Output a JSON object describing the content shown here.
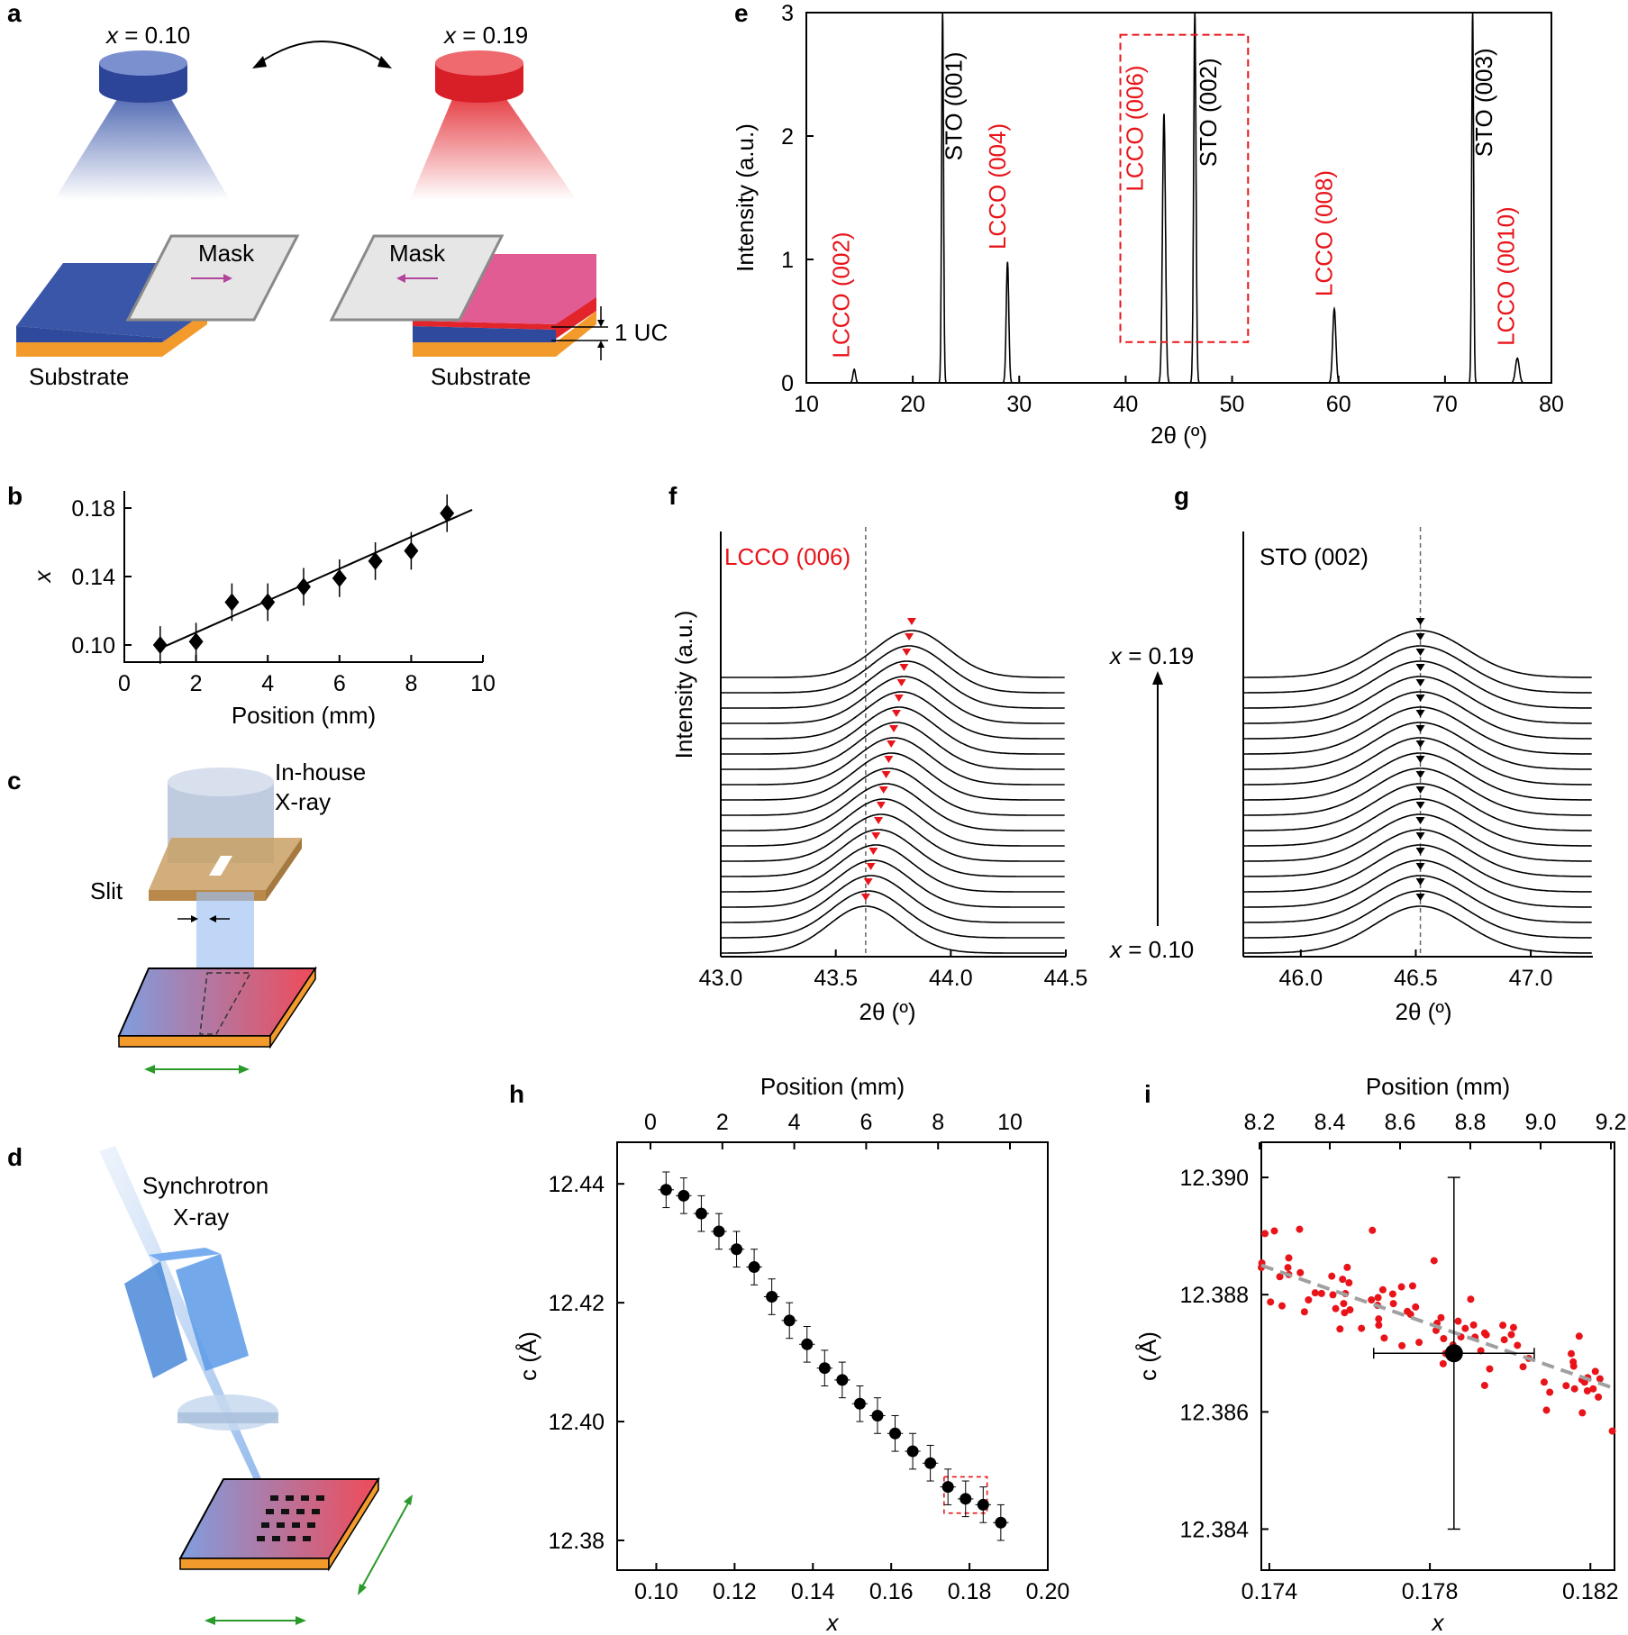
{
  "panels": {
    "a": "a",
    "b": "b",
    "c": "c",
    "d": "d",
    "e": "e",
    "f": "f",
    "g": "g",
    "h": "h",
    "i": "i"
  },
  "panel_a": {
    "x_left_pre": "x",
    "x_left_val": " = 0.10",
    "x_right_pre": "x",
    "x_right_val": " = 0.19",
    "mask_left": "Mask",
    "mask_right": "Mask",
    "substrate_left": "Substrate",
    "substrate_right": "Substrate",
    "uc_label": "1 UC",
    "colors": {
      "blue": "#2f4a9c",
      "red": "#e2242b",
      "pink": "#e25c94",
      "substrate": "#f39a2c"
    }
  },
  "panel_c": {
    "source": "In-house",
    "source2": "X-ray",
    "slit": "Slit"
  },
  "panel_d": {
    "source": "Synchrotron",
    "source2": "X-ray"
  },
  "panel_f": {
    "peak_label": "LCCO (006)",
    "ylabel": "Intensity (a.u.)",
    "xlabel": "2θ (º)"
  },
  "panel_g": {
    "peak_label": "STO (002)",
    "xlabel": "2θ (º)"
  },
  "arrow_labels": {
    "top_pre": "x",
    "top_val": " = 0.19",
    "bottom_pre": "x",
    "bottom_val": " = 0.10"
  },
  "chart_data": [
    {
      "id": "b",
      "type": "scatter",
      "xlabel": "Position (mm)",
      "ylabel": "x",
      "xlim": [
        0,
        10
      ],
      "ylim": [
        0.09,
        0.19
      ],
      "xticks": [
        "0",
        "2",
        "4",
        "6",
        "8",
        "10"
      ],
      "yticks": [
        "0.10",
        "0.14",
        "0.18"
      ],
      "x": [
        1,
        2,
        3,
        4,
        5,
        6,
        7,
        8,
        9
      ],
      "y": [
        0.1,
        0.102,
        0.125,
        0.125,
        0.134,
        0.139,
        0.149,
        0.155,
        0.177
      ],
      "yerr": 0.011,
      "fit": {
        "x0": 1,
        "y0": 0.098,
        "x1": 9.7,
        "y1": 0.179
      }
    },
    {
      "id": "e",
      "type": "line",
      "xlabel": "2θ (º)",
      "ylabel": "Intensity (a.u.)",
      "xlim": [
        10,
        80
      ],
      "ylim": [
        0,
        3
      ],
      "xticks": [
        "10",
        "20",
        "30",
        "40",
        "50",
        "60",
        "70",
        "80"
      ],
      "yticks": [
        "0",
        "1",
        "2",
        "3"
      ],
      "peaks": [
        {
          "x": 14.5,
          "h": 0.11,
          "w": 0.12
        },
        {
          "x": 22.8,
          "h": 3.0,
          "w": 0.09
        },
        {
          "x": 28.9,
          "h": 0.98,
          "w": 0.12
        },
        {
          "x": 43.6,
          "h": 2.18,
          "w": 0.14
        },
        {
          "x": 46.5,
          "h": 3.0,
          "w": 0.11
        },
        {
          "x": 59.6,
          "h": 0.6,
          "w": 0.15
        },
        {
          "x": 72.6,
          "h": 3.0,
          "w": 0.09
        },
        {
          "x": 76.8,
          "h": 0.2,
          "w": 0.18
        }
      ],
      "labels": [
        {
          "text": "LCCO (002)",
          "x": 14.0,
          "y": 0.2,
          "color": "red"
        },
        {
          "text": "STO (001)",
          "x": 24.6,
          "y": 1.8,
          "color": "black"
        },
        {
          "text": "LCCO (004)",
          "x": 28.7,
          "y": 1.08,
          "color": "red"
        },
        {
          "text": "LCCO (006)",
          "x": 41.6,
          "y": 1.55,
          "color": "red"
        },
        {
          "text": "STO (002)",
          "x": 48.5,
          "y": 1.75,
          "color": "black"
        },
        {
          "text": "LCCO (008)",
          "x": 59.4,
          "y": 0.7,
          "color": "red"
        },
        {
          "text": "STO (003)",
          "x": 74.4,
          "y": 1.83,
          "color": "black"
        },
        {
          "text": "LCCO (0010)",
          "x": 76.5,
          "y": 0.3,
          "color": "red"
        }
      ],
      "box": {
        "x0": 39.5,
        "x1": 51.5,
        "y0": 0.33,
        "y1": 2.82
      }
    },
    {
      "id": "f",
      "type": "line",
      "xlim": [
        43.0,
        44.5
      ],
      "xticks": [
        "43.0",
        "43.5",
        "44.0",
        "44.5"
      ],
      "n_curves": 19,
      "peak_start": 43.63,
      "peak_end": 43.83,
      "dashed_x": 43.63
    },
    {
      "id": "g",
      "type": "line",
      "xlim": [
        45.75,
        47.27
      ],
      "xticks": [
        "46.0",
        "46.5",
        "47.0"
      ],
      "n_curves": 19,
      "peak": 46.52,
      "dashed_x": 46.52
    },
    {
      "id": "h",
      "type": "scatter",
      "xlabel": "x",
      "ylabel": "c (Å)",
      "top_xlabel": "Position (mm)",
      "xlim": [
        0.09,
        0.2
      ],
      "ylim": [
        12.375,
        12.447
      ],
      "xticks": [
        "0.10",
        "0.12",
        "0.14",
        "0.16",
        "0.18",
        "0.20"
      ],
      "yticks": [
        "12.38",
        "12.40",
        "12.42",
        "12.44"
      ],
      "top_xticks": [
        "0",
        "2",
        "4",
        "6",
        "8",
        "10"
      ],
      "x": [
        0.1025,
        0.107,
        0.1115,
        0.116,
        0.1205,
        0.125,
        0.1295,
        0.134,
        0.1385,
        0.143,
        0.1475,
        0.152,
        0.1565,
        0.161,
        0.1655,
        0.17,
        0.1745,
        0.179,
        0.1835,
        0.188
      ],
      "y": [
        12.439,
        12.438,
        12.435,
        12.432,
        12.429,
        12.426,
        12.421,
        12.417,
        12.413,
        12.409,
        12.407,
        12.403,
        12.401,
        12.398,
        12.395,
        12.393,
        12.389,
        12.387,
        12.386,
        12.383
      ],
      "yerr": 0.003,
      "xerr": 0.002,
      "box": {
        "x0": 0.1735,
        "x1": 0.1845,
        "y0": 12.3846,
        "y1": 12.3907
      }
    },
    {
      "id": "i",
      "type": "scatter",
      "xlabel": "x",
      "ylabel": "c (Å)",
      "top_xlabel": "Position (mm)",
      "xlim": [
        0.1738,
        0.1826
      ],
      "ylim": [
        12.3833,
        12.3906
      ],
      "xticks": [
        "0.174",
        "0.178",
        "0.182"
      ],
      "yticks": [
        "12.384",
        "12.386",
        "12.388",
        "12.390"
      ],
      "top_xticks": [
        "8.2",
        "8.4",
        "8.6",
        "8.8",
        "9.0",
        "9.2"
      ],
      "mean": {
        "x": 0.1786,
        "y": 12.387,
        "xerr": 0.002,
        "yerr": 0.003
      },
      "trend": {
        "x0": 0.1738,
        "y0": 12.3885,
        "x1": 0.1826,
        "y1": 12.3864
      },
      "scatter_n": 90,
      "scatter_sd": 0.00038
    }
  ]
}
